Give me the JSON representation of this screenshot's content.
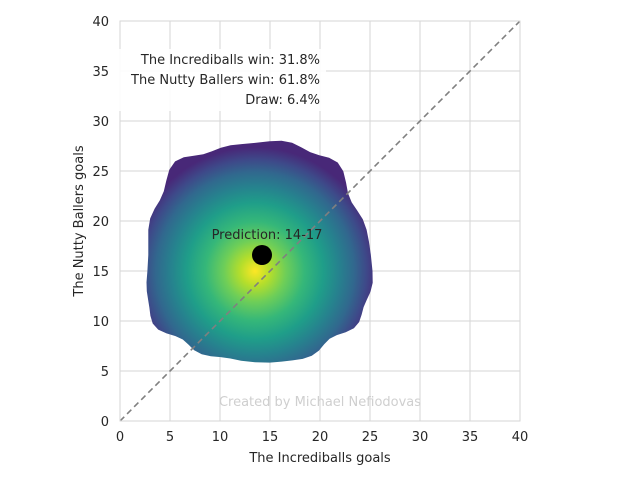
{
  "chart_data": {
    "type": "heatmap",
    "xlabel": "The Incrediballs goals",
    "ylabel": "The Nutty Ballers goals",
    "xlim": [
      0,
      40
    ],
    "ylim": [
      0,
      40
    ],
    "x_ticks": [
      "0",
      "5",
      "10",
      "15",
      "20",
      "25",
      "30",
      "35",
      "40"
    ],
    "y_ticks": [
      "0",
      "5",
      "10",
      "15",
      "20",
      "25",
      "30",
      "35",
      "40"
    ],
    "grid": true,
    "density": {
      "center": [
        13.5,
        15.0
      ],
      "extent_x": [
        2.5,
        25.0
      ],
      "extent_y": [
        6.0,
        28.0
      ],
      "colormap": "viridis"
    },
    "diagonal": {
      "from": [
        0,
        0
      ],
      "to": [
        40,
        40
      ],
      "style": "dashed",
      "color": "#808080"
    },
    "prediction_point": {
      "x": 14.2,
      "y": 16.6
    },
    "annotations": {
      "home_win": "The Incrediballs win: 31.8%",
      "away_win": "The Nutty Ballers win: 61.8%",
      "draw": "Draw: 6.4%",
      "prediction": "Prediction: 14-17",
      "watermark": "Created by Michael Nefiodovas"
    }
  }
}
